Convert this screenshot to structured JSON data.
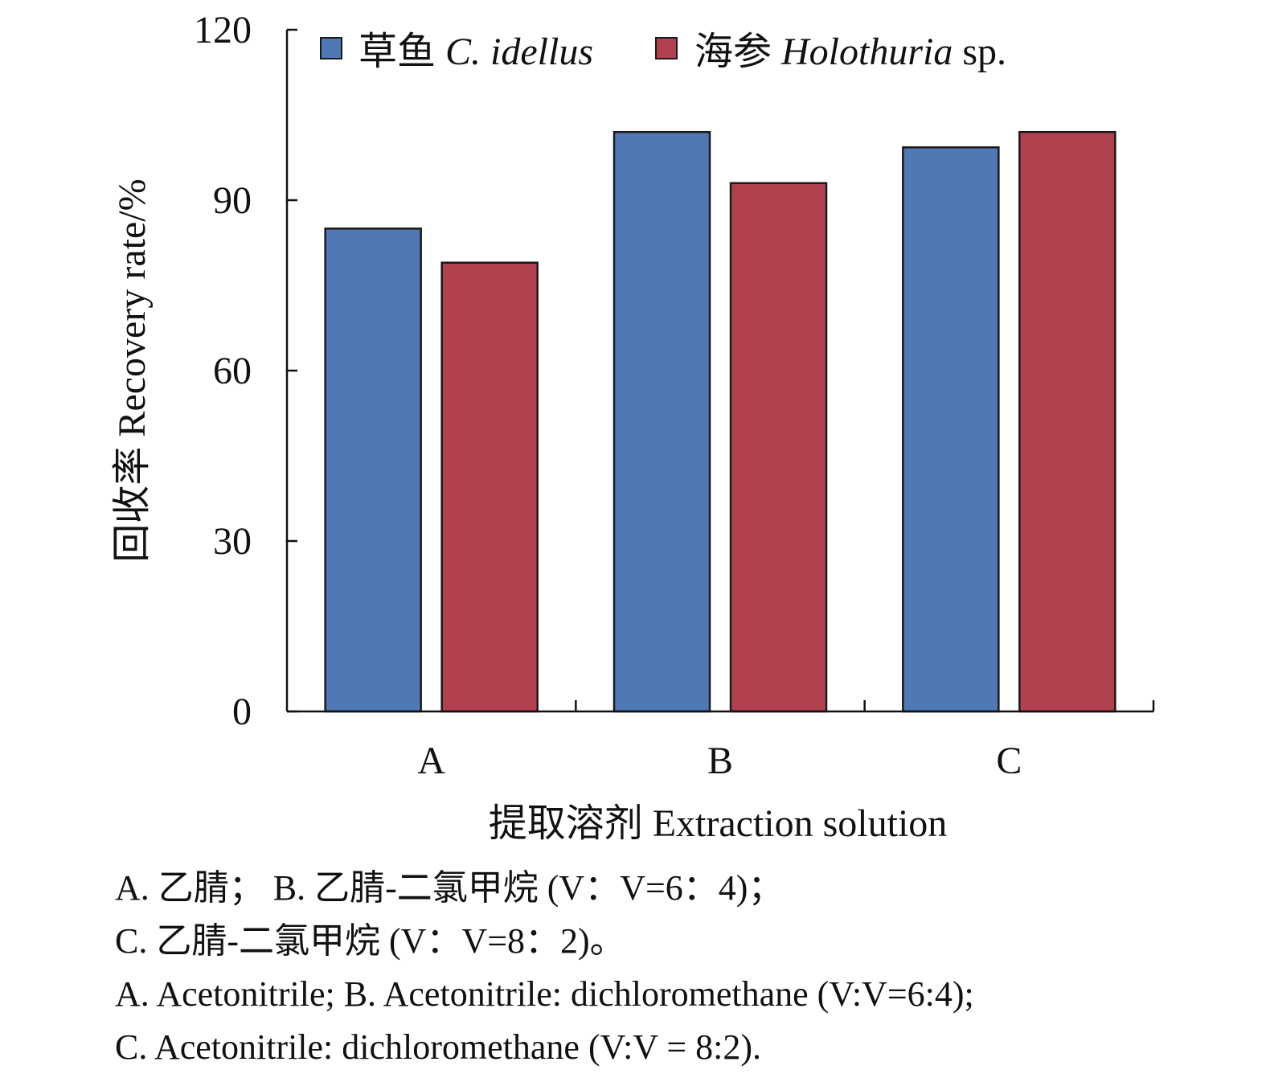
{
  "chart_data": {
    "type": "bar",
    "categories": [
      "A",
      "B",
      "C"
    ],
    "series": [
      {
        "name": "草鱼 C. idellus",
        "name_cn": "草鱼",
        "name_latin": "C. idellus",
        "name_suffix": "",
        "color": "#4f78b4",
        "values": [
          85,
          102,
          99.3
        ]
      },
      {
        "name": "海参 Holothuria sp.",
        "name_cn": "海参",
        "name_latin": "Holothuria",
        "name_suffix": " sp.",
        "color": "#b1414f",
        "values": [
          79,
          93,
          102
        ]
      }
    ],
    "xlabel": "提取溶剂 Extraction solution",
    "ylabel": "回收率 Recovery rate/%",
    "ylim": [
      0,
      120
    ],
    "yticks": [
      "0",
      "30",
      "60",
      "90",
      "120"
    ],
    "grid": false,
    "legend_position": "top"
  },
  "notes": [
    "A. 乙腈； B. 乙腈-二氯甲烷 (V：V=6：4)；",
    "C. 乙腈-二氯甲烷 (V：V=8：2)。",
    "A. Acetonitrile; B. Acetonitrile: dichloromethane (V:V=6:4);",
    "C. Acetonitrile: dichloromethane (V:V = 8:2)."
  ]
}
